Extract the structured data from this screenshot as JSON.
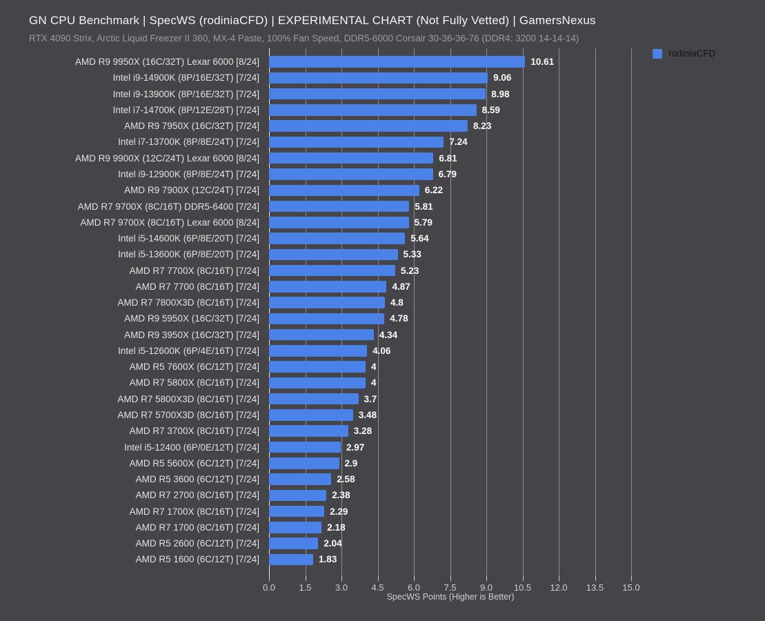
{
  "header": {
    "title": "GN CPU Benchmark | SpecWS (rodiniaCFD) | EXPERIMENTAL CHART (Not Fully Vetted) | GamersNexus",
    "subtitle": "RTX 4090 Strix, Arctic Liquid Freezer II 360, MX-4 Paste, 100% Fan Speed, DDR5-6000 Corsair 30-36-36-76 (DDR4: 3200 14-14-14)"
  },
  "legend": {
    "label": "rodiniaCFD",
    "swatch_color": "#4a82e8",
    "position": "top-right"
  },
  "axis": {
    "xlabel": "SpecWS Points (Higher is Better)",
    "xticks": [
      "0.0",
      "1.5",
      "3.0",
      "4.5",
      "6.0",
      "7.5",
      "9.0",
      "10.5",
      "12.0",
      "13.5",
      "15.0"
    ]
  },
  "chart_data": {
    "type": "bar",
    "orientation": "horizontal",
    "title": "GN CPU Benchmark | SpecWS (rodiniaCFD) | EXPERIMENTAL CHART (Not Fully Vetted) | GamersNexus",
    "subtitle": "RTX 4090 Strix, Arctic Liquid Freezer II 360, MX-4 Paste, 100% Fan Speed, DDR5-6000 Corsair 30-36-36-76 (DDR4: 3200 14-14-14)",
    "series_name": "rodiniaCFD",
    "xlabel": "SpecWS Points (Higher is Better)",
    "ylabel": "",
    "xlim": [
      0,
      15.75
    ],
    "xtick_values": [
      0,
      1.5,
      3,
      4.5,
      6,
      7.5,
      9,
      10.5,
      12,
      13.5,
      15
    ],
    "grid": true,
    "legend_position": "top-right",
    "categories": [
      "AMD R9 9950X (16C/32T) Lexar 6000 [8/24]",
      "Intel i9-14900K (8P/16E/32T) [7/24]",
      "Intel i9-13900K (8P/16E/32T) [7/24]",
      "Intel i7-14700K (8P/12E/28T) [7/24]",
      "AMD R9 7950X (16C/32T) [7/24]",
      "Intel i7-13700K (8P/8E/24T) [7/24]",
      "AMD R9 9900X (12C/24T) Lexar 6000 [8/24]",
      "Intel i9-12900K (8P/8E/24T) [7/24]",
      "AMD R9 7900X (12C/24T) [7/24]",
      "AMD R7 9700X (8C/16T) DDR5-6400 [7/24]",
      "AMD R7 9700X (8C/16T) Lexar 6000 [8/24]",
      "Intel i5-14600K (6P/8E/20T) [7/24]",
      "Intel i5-13600K (6P/8E/20T) [7/24]",
      "AMD R7 7700X (8C/16T) [7/24]",
      "AMD R7 7700 (8C/16T) [7/24]",
      "AMD R7 7800X3D (8C/16T) [7/24]",
      "AMD R9 5950X (16C/32T) [7/24]",
      "AMD R9 3950X (16C/32T) [7/24]",
      "Intel i5-12600K (6P/4E/16T) [7/24]",
      "AMD R5 7600X (6C/12T) [7/24]",
      "AMD R7 5800X (8C/16T) [7/24]",
      "AMD R7 5800X3D (8C/16T) [7/24]",
      "AMD R7 5700X3D (8C/16T) [7/24]",
      "AMD R7 3700X (8C/16T) [7/24]",
      "Intel i5-12400 (6P/0E/12T) [7/24]",
      "AMD R5 5600X (6C/12T) [7/24]",
      "AMD R5 3600 (6C/12T) [7/24]",
      "AMD R7 2700 (8C/16T) [7/24]",
      "AMD R7 1700X (8C/16T) [7/24]",
      "AMD R7 1700 (8C/16T) [7/24]",
      "AMD R5 2600 (6C/12T) [7/24]",
      "AMD R5 1600 (6C/12T) [7/24]"
    ],
    "values": [
      10.61,
      9.06,
      8.98,
      8.59,
      8.23,
      7.24,
      6.81,
      6.79,
      6.22,
      5.81,
      5.79,
      5.64,
      5.33,
      5.23,
      4.87,
      4.8,
      4.78,
      4.34,
      4.06,
      4,
      4,
      3.7,
      3.48,
      3.28,
      2.97,
      2.9,
      2.58,
      2.38,
      2.29,
      2.18,
      2.04,
      1.83
    ],
    "value_labels": [
      "10.61",
      "9.06",
      "8.98",
      "8.59",
      "8.23",
      "7.24",
      "6.81",
      "6.79",
      "6.22",
      "5.81",
      "5.79",
      "5.64",
      "5.33",
      "5.23",
      "4.87",
      "4.8",
      "4.78",
      "4.34",
      "4.06",
      "4",
      "4",
      "3.7",
      "3.48",
      "3.28",
      "2.97",
      "2.9",
      "2.58",
      "2.38",
      "2.29",
      "2.18",
      "2.04",
      "1.83"
    ]
  },
  "colors": {
    "bg": "#454448",
    "bar": "#4a82e8",
    "grid": "#8f8f8f",
    "zeroLine": "#ececec",
    "title": "#f5f5f5",
    "subtitle": "#9b9b9b",
    "category": "#e2e2e2",
    "value": "#ffffff",
    "tick": "#cfcfcf",
    "legendText": "#141414"
  }
}
